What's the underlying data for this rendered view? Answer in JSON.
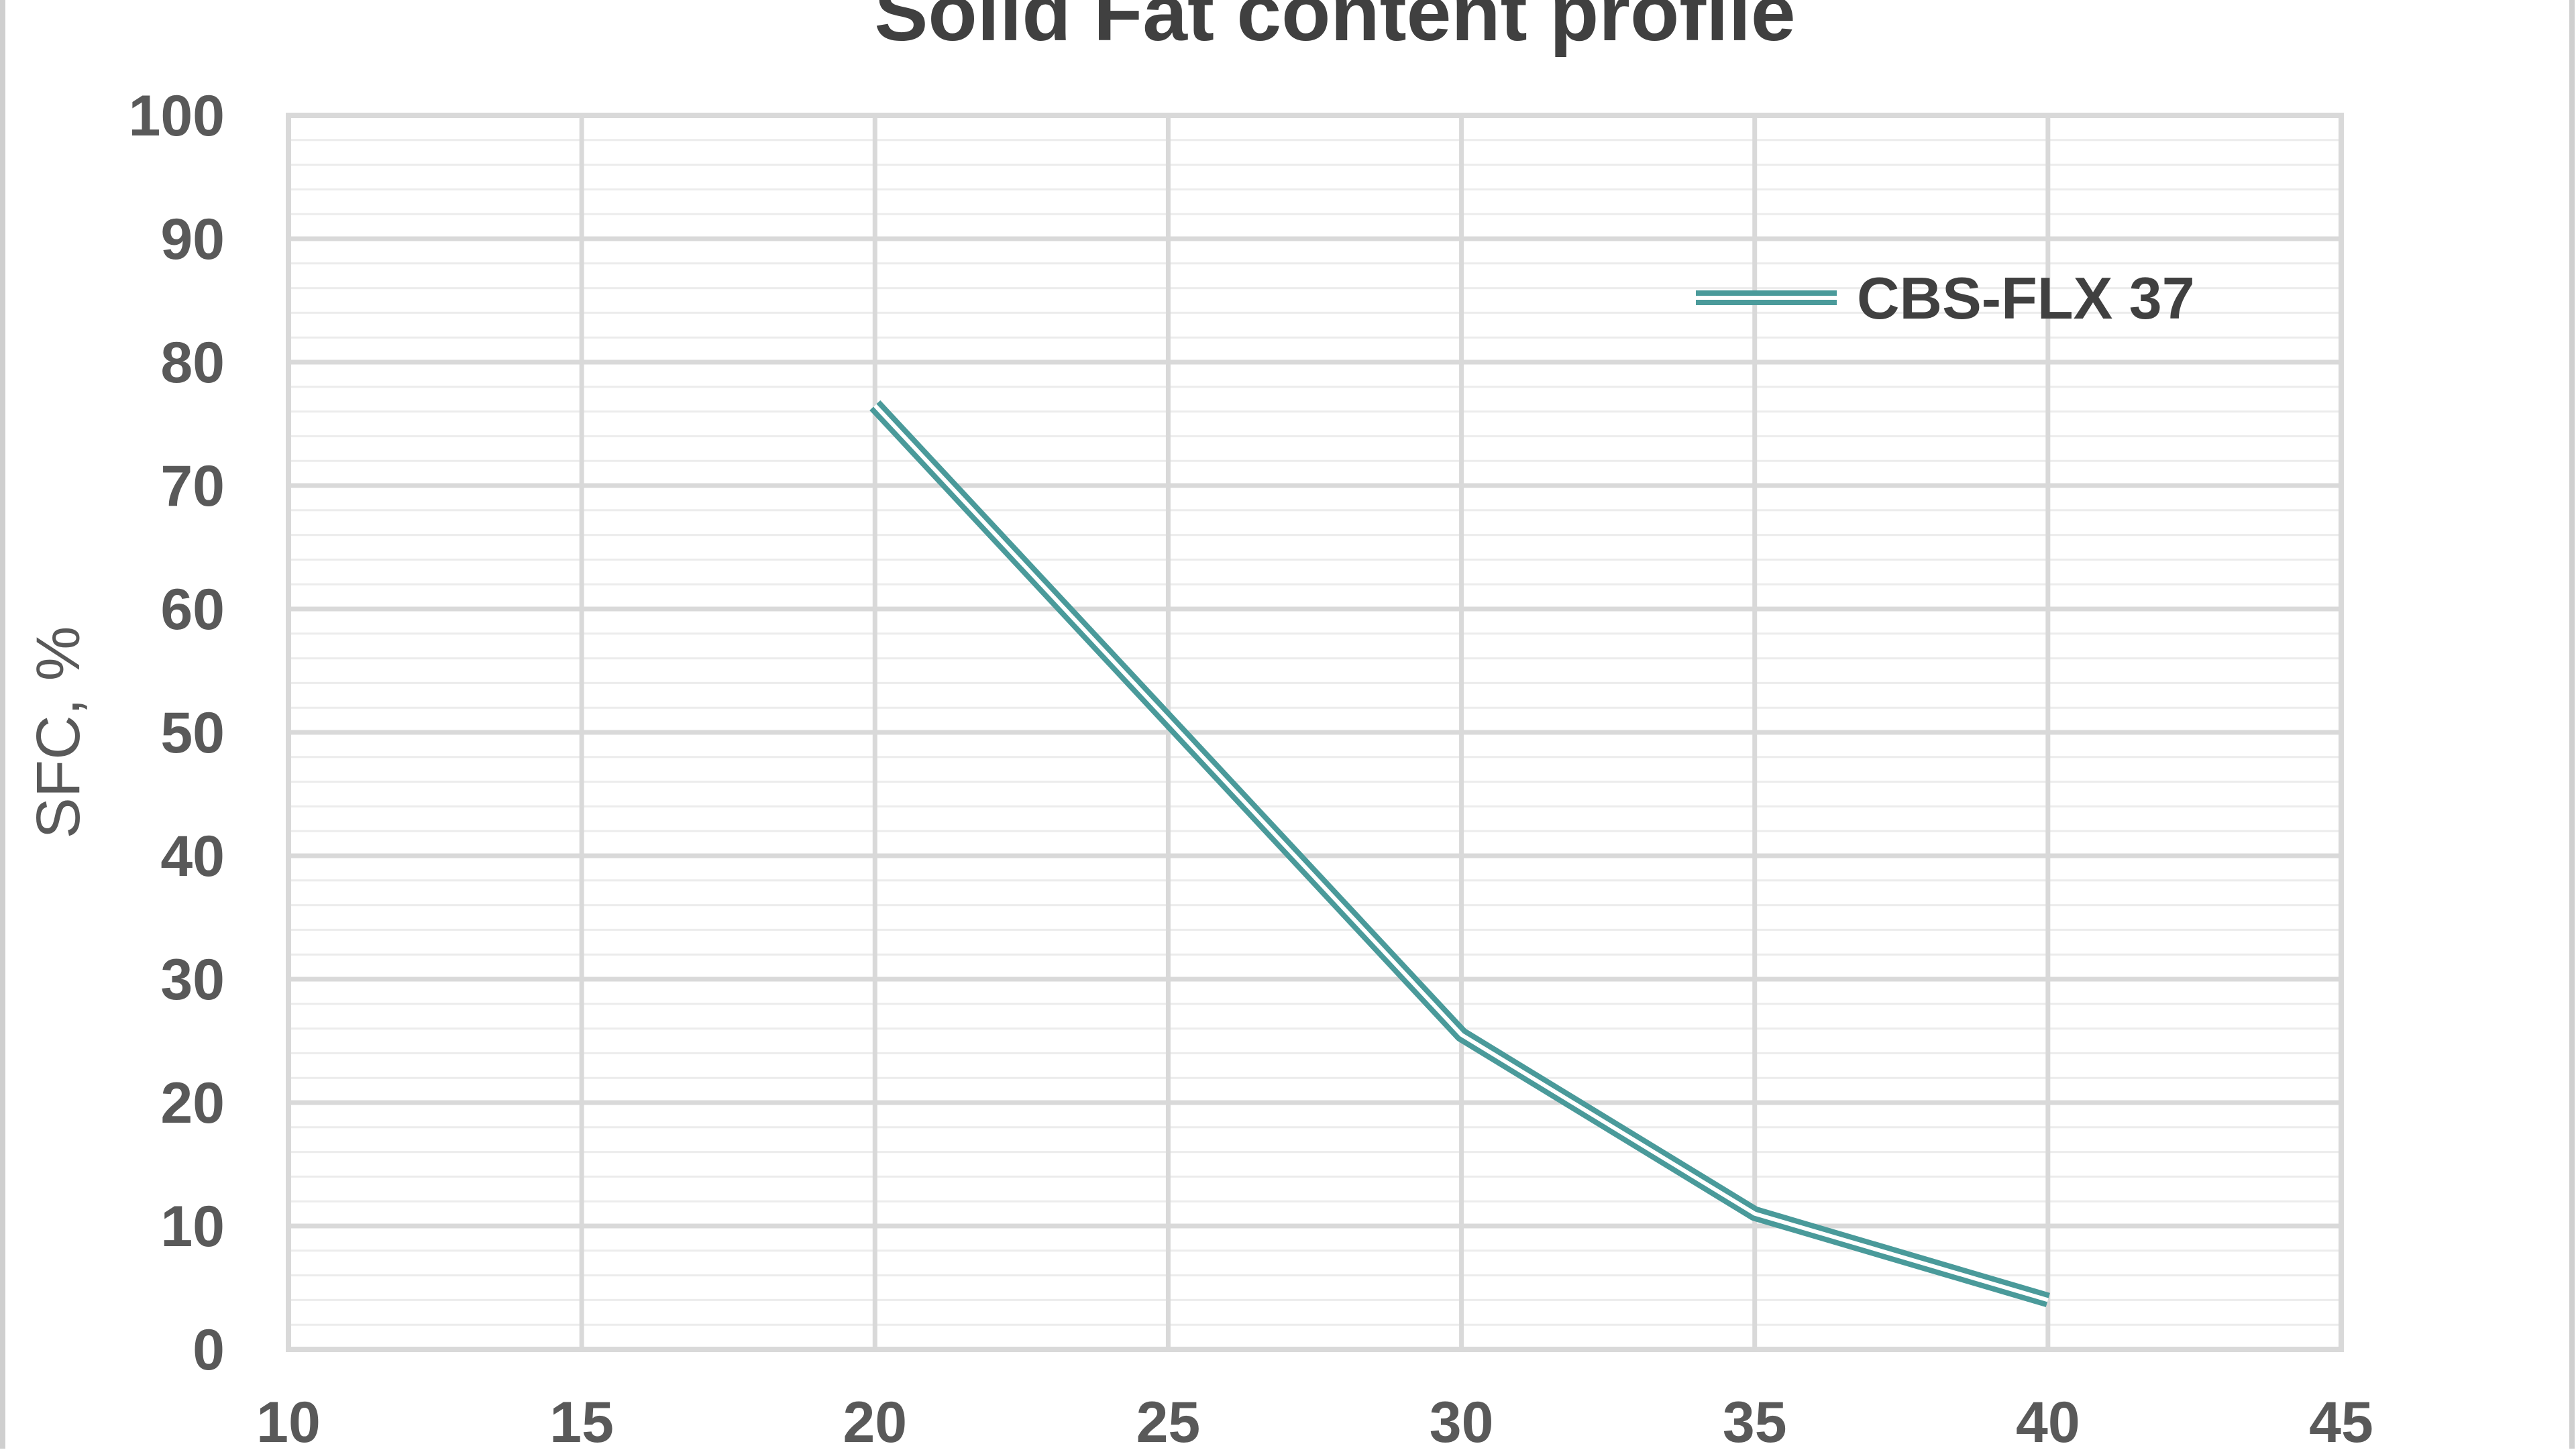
{
  "chart_data": {
    "type": "line",
    "title": "Solid Fat content profile",
    "xlabel": "",
    "ylabel": "SFC, %",
    "xlim": [
      10,
      45
    ],
    "ylim": [
      0,
      100
    ],
    "x_ticks": [
      "10",
      "15",
      "20",
      "25",
      "30",
      "35",
      "40",
      "45"
    ],
    "y_ticks": [
      "0",
      "10",
      "20",
      "30",
      "40",
      "50",
      "60",
      "70",
      "80",
      "90",
      "100"
    ],
    "grid": true,
    "legend_position": "top-right",
    "series": [
      {
        "name": "CBS-FLX 37",
        "color": "#4a9a9a",
        "x": [
          20,
          25,
          30,
          35,
          40
        ],
        "values": [
          76.5,
          51,
          25.5,
          11,
          4
        ]
      }
    ]
  }
}
